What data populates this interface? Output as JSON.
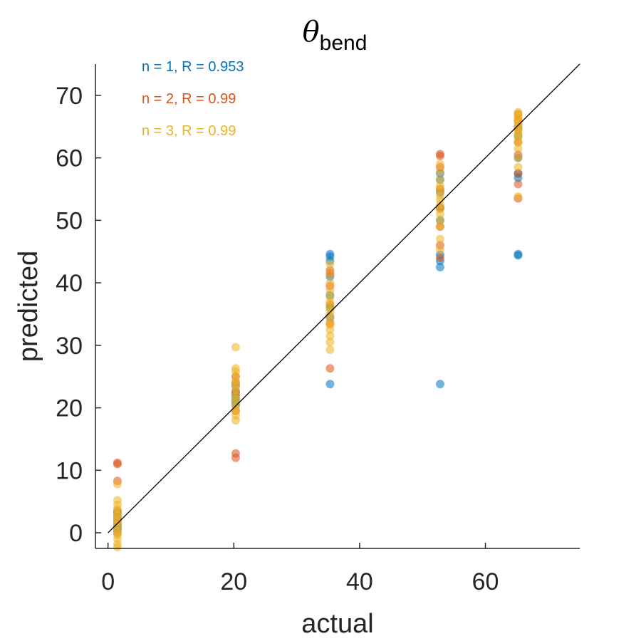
{
  "chart_data": {
    "type": "scatter",
    "title": "θ",
    "title_subscript": "bend",
    "xlabel": "actual",
    "ylabel": "predicted",
    "xlim": [
      -2,
      75
    ],
    "ylim": [
      -2.5,
      75
    ],
    "xticks": [
      0,
      20,
      40,
      60
    ],
    "yticks": [
      0,
      10,
      20,
      30,
      40,
      50,
      60,
      70
    ],
    "grid": false,
    "legend_position": "top-left",
    "reference_line": {
      "from": [
        0,
        0
      ],
      "to": [
        75,
        75
      ],
      "color": "#000000"
    },
    "series": [
      {
        "name": "n = 1, R = 0.953",
        "color": "#0072BD",
        "points": [
          [
            1.5,
            0.5
          ],
          [
            1.5,
            1.5
          ],
          [
            1.5,
            2.5
          ],
          [
            1.5,
            3.2
          ],
          [
            1.5,
            1.0
          ],
          [
            20.3,
            20.5
          ],
          [
            20.3,
            21.5
          ],
          [
            20.3,
            22.5
          ],
          [
            20.3,
            23.5
          ],
          [
            20.3,
            21.0
          ],
          [
            20.3,
            22.0
          ],
          [
            35.3,
            23.8
          ],
          [
            35.3,
            34.5
          ],
          [
            35.3,
            36.0
          ],
          [
            35.3,
            38.0
          ],
          [
            35.3,
            41.0
          ],
          [
            35.3,
            43.5
          ],
          [
            35.3,
            44.2
          ],
          [
            35.3,
            44.6
          ],
          [
            52.8,
            23.8
          ],
          [
            52.8,
            42.5
          ],
          [
            52.8,
            43.5
          ],
          [
            52.8,
            44.5
          ],
          [
            52.8,
            50.0
          ],
          [
            52.8,
            52.0
          ],
          [
            52.8,
            54.5
          ],
          [
            52.8,
            56.5
          ],
          [
            52.8,
            57.5
          ],
          [
            65.2,
            44.4
          ],
          [
            65.2,
            44.6
          ],
          [
            65.2,
            56.8
          ],
          [
            65.2,
            57.5
          ],
          [
            65.2,
            60.0
          ],
          [
            65.2,
            63.5
          ],
          [
            65.2,
            65.0
          ]
        ]
      },
      {
        "name": "n = 2, R = 0.99",
        "color": "#D95319",
        "points": [
          [
            1.5,
            11.0
          ],
          [
            1.5,
            11.2
          ],
          [
            1.5,
            8.3
          ],
          [
            1.5,
            0.0
          ],
          [
            1.5,
            2.0
          ],
          [
            1.5,
            3.5
          ],
          [
            20.3,
            12.0
          ],
          [
            20.3,
            12.7
          ],
          [
            20.3,
            19.5
          ],
          [
            20.3,
            22.5
          ],
          [
            20.3,
            24.0
          ],
          [
            20.3,
            25.0
          ],
          [
            35.3,
            26.3
          ],
          [
            35.3,
            33.5
          ],
          [
            35.3,
            36.5
          ],
          [
            35.3,
            39.5
          ],
          [
            35.3,
            42.0
          ],
          [
            35.3,
            41.5
          ],
          [
            52.8,
            44.0
          ],
          [
            52.8,
            46.0
          ],
          [
            52.8,
            49.0
          ],
          [
            52.8,
            52.0
          ],
          [
            52.8,
            55.0
          ],
          [
            52.8,
            58.5
          ],
          [
            52.8,
            60.3
          ],
          [
            52.8,
            60.6
          ],
          [
            65.2,
            53.5
          ],
          [
            65.2,
            55.8
          ],
          [
            65.2,
            57.5
          ],
          [
            65.2,
            60.5
          ],
          [
            65.2,
            62.5
          ],
          [
            65.2,
            64.5
          ],
          [
            65.2,
            66.0
          ],
          [
            65.2,
            67.0
          ]
        ]
      },
      {
        "name": "n = 3, R = 0.99",
        "color": "#EDB120",
        "points": [
          [
            1.5,
            -2.3
          ],
          [
            1.5,
            -1.8
          ],
          [
            1.5,
            -1.0
          ],
          [
            1.5,
            -0.3
          ],
          [
            1.5,
            0.2
          ],
          [
            1.5,
            0.8
          ],
          [
            1.5,
            1.3
          ],
          [
            1.5,
            1.8
          ],
          [
            1.5,
            2.3
          ],
          [
            1.5,
            2.8
          ],
          [
            1.5,
            3.3
          ],
          [
            1.5,
            3.8
          ],
          [
            1.5,
            4.5
          ],
          [
            1.5,
            5.2
          ],
          [
            1.5,
            7.8
          ],
          [
            20.3,
            18.0
          ],
          [
            20.3,
            18.8
          ],
          [
            20.3,
            19.5
          ],
          [
            20.3,
            20.2
          ],
          [
            20.3,
            20.8
          ],
          [
            20.3,
            21.4
          ],
          [
            20.3,
            22.0
          ],
          [
            20.3,
            22.8
          ],
          [
            20.3,
            23.5
          ],
          [
            20.3,
            24.2
          ],
          [
            20.3,
            25.0
          ],
          [
            20.3,
            25.8
          ],
          [
            20.3,
            26.3
          ],
          [
            20.3,
            29.7
          ],
          [
            35.3,
            29.3
          ],
          [
            35.3,
            30.5
          ],
          [
            35.3,
            31.5
          ],
          [
            35.3,
            32.5
          ],
          [
            35.3,
            33.3
          ],
          [
            35.3,
            34.0
          ],
          [
            35.3,
            34.8
          ],
          [
            35.3,
            35.5
          ],
          [
            35.3,
            36.2
          ],
          [
            35.3,
            37.0
          ],
          [
            35.3,
            37.8
          ],
          [
            35.3,
            38.8
          ],
          [
            35.3,
            40.0
          ],
          [
            35.3,
            41.5
          ],
          [
            35.3,
            43.0
          ],
          [
            52.8,
            45.3
          ],
          [
            52.8,
            47.0
          ],
          [
            52.8,
            49.0
          ],
          [
            52.8,
            50.0
          ],
          [
            52.8,
            51.0
          ],
          [
            52.8,
            51.8
          ],
          [
            52.8,
            52.5
          ],
          [
            52.8,
            53.3
          ],
          [
            52.8,
            54.0
          ],
          [
            52.8,
            54.8
          ],
          [
            52.8,
            55.5
          ],
          [
            52.8,
            56.5
          ],
          [
            52.8,
            57.8
          ],
          [
            52.8,
            59.0
          ],
          [
            65.2,
            53.8
          ],
          [
            65.2,
            58.5
          ],
          [
            65.2,
            60.0
          ],
          [
            65.2,
            61.5
          ],
          [
            65.2,
            62.5
          ],
          [
            65.2,
            63.2
          ],
          [
            65.2,
            63.8
          ],
          [
            65.2,
            64.3
          ],
          [
            65.2,
            64.8
          ],
          [
            65.2,
            65.3
          ],
          [
            65.2,
            65.8
          ],
          [
            65.2,
            66.3
          ],
          [
            65.2,
            66.8
          ],
          [
            65.2,
            67.3
          ]
        ]
      }
    ]
  }
}
